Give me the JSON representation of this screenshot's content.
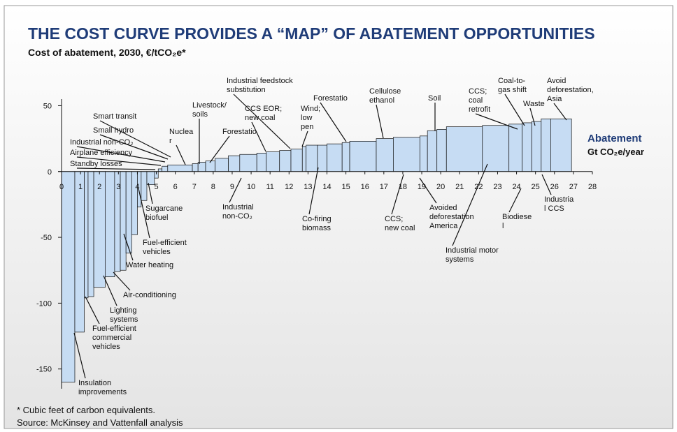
{
  "chart_data": {
    "type": "bar",
    "title": "THE COST CURVE PROVIDES A “MAP” OF ABATEMENT OPPORTUNITIES",
    "subtitle": "Cost of abatement, 2030, €/tCO₂e*",
    "x_label": [
      "Abatement",
      "Gt CO₂e/year"
    ],
    "widths": [
      0.7,
      0.5,
      0.2,
      0.3,
      0.6,
      0.5,
      0.3,
      0.3,
      0.3,
      0.3,
      0.2,
      0.3,
      0.4,
      0.2,
      0.2,
      0.3,
      1.3,
      0.3,
      0.4,
      0.5,
      0.7,
      0.6,
      0.9,
      0.5,
      0.7,
      0.6,
      0.6,
      0.2,
      0.6,
      0.5,
      0.8,
      0.4,
      1.4,
      0.9,
      1.4,
      0.4,
      0.5,
      0.5,
      1.9,
      1.4,
      0.7,
      0.5,
      0.5,
      0.5,
      1.1
    ],
    "values": [
      -160,
      -122,
      -96,
      -95,
      -88,
      -80,
      -76,
      -75,
      -62,
      -48,
      -27,
      -22,
      -10,
      -5,
      2,
      4,
      5,
      6,
      7,
      8,
      10,
      12,
      13,
      14,
      15,
      16,
      17,
      19,
      20,
      20,
      21,
      22,
      23,
      25,
      26,
      27,
      31,
      32,
      34,
      35,
      36,
      37,
      38,
      40,
      40
    ],
    "color": "#c6dcf3",
    "xlim": [
      0,
      28
    ],
    "xticks": [
      0,
      1,
      2,
      3,
      4,
      5,
      6,
      7,
      8,
      9,
      10,
      11,
      12,
      13,
      14,
      15,
      16,
      17,
      18,
      19,
      20,
      21,
      22,
      23,
      24,
      25,
      26,
      27,
      28
    ],
    "ylim": [
      -165,
      55
    ],
    "yticks": [
      50,
      0,
      -50,
      -100,
      -150
    ],
    "annotations": [
      [
        "Smart transit"
      ],
      [
        "Small hydro"
      ],
      [
        "Industrial non-CO₂"
      ],
      [
        "Airplane efficiency"
      ],
      [
        "Standby losses"
      ],
      [
        "Nuclea",
        "r"
      ],
      [
        "Livestock/",
        "soils"
      ],
      [
        "Forestatio"
      ],
      [
        "Industrial feedstock",
        "substitution"
      ],
      [
        "CCS EOR;",
        "new coal"
      ],
      [
        "Wind;",
        "low",
        "pen"
      ],
      [
        "Forestatio"
      ],
      [
        "Cellulose",
        "ethanol"
      ],
      [
        "Soil"
      ],
      [
        "CCS;",
        "coal",
        "retrofit"
      ],
      [
        "Coal-to-",
        "gas shift"
      ],
      [
        "Waste"
      ],
      [
        "Avoid",
        "deforestation,",
        "Asia"
      ],
      [
        "Sugarcane",
        "biofuel"
      ],
      [
        "Fuel-efficient",
        "vehicles"
      ],
      [
        "Water heating"
      ],
      [
        "Air-conditioning"
      ],
      [
        "Lighting",
        "systems"
      ],
      [
        "Fuel-efficient",
        "commercial",
        "vehicles"
      ],
      [
        "Insulation",
        "improvements"
      ],
      [
        "Industrial",
        "non-CO₂"
      ],
      [
        "Co-firing",
        "biomass"
      ],
      [
        "CCS;",
        "new coal"
      ],
      [
        "Avoided",
        "deforestation",
        "America"
      ],
      [
        "Industrial motor",
        "systems"
      ],
      [
        "Biodiese",
        "l"
      ],
      [
        "Industria",
        "l CCS"
      ]
    ],
    "footnotes": [
      "* Cubic feet of carbon equivalents.",
      "Source:  McKinsey and Vattenfall analysis"
    ]
  }
}
